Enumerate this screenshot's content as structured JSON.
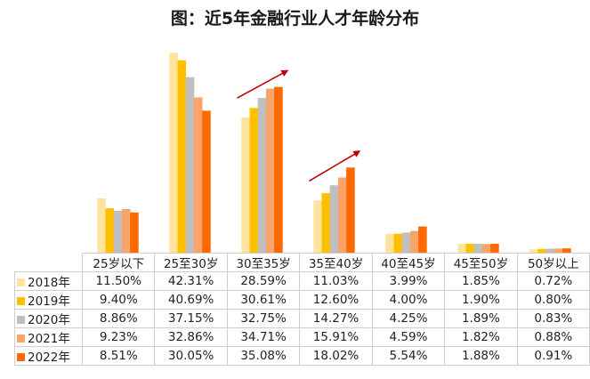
{
  "chart_data": {
    "type": "bar",
    "title": "图：近5年金融行业人才年龄分布",
    "categories": [
      "25岁以下",
      "25至30岁",
      "30至35岁",
      "35至40岁",
      "40至45岁",
      "45至50岁",
      "50岁以上"
    ],
    "series": [
      {
        "name": "2018年",
        "color": "#FDE39C",
        "values": [
          11.5,
          42.31,
          28.59,
          11.03,
          3.99,
          1.85,
          0.72
        ],
        "labels": [
          "11.50%",
          "42.31%",
          "28.59%",
          "11.03%",
          "3.99%",
          "1.85%",
          "0.72%"
        ]
      },
      {
        "name": "2019年",
        "color": "#FFC000",
        "values": [
          9.4,
          40.69,
          30.61,
          12.6,
          4.0,
          1.9,
          0.8
        ],
        "labels": [
          "9.40%",
          "40.69%",
          "30.61%",
          "12.60%",
          "4.00%",
          "1.90%",
          "0.80%"
        ]
      },
      {
        "name": "2020年",
        "color": "#BFBFBF",
        "values": [
          8.86,
          37.15,
          32.75,
          14.27,
          4.25,
          1.89,
          0.83
        ],
        "labels": [
          "8.86%",
          "37.15%",
          "32.75%",
          "14.27%",
          "4.25%",
          "1.89%",
          "0.83%"
        ]
      },
      {
        "name": "2021年",
        "color": "#F8A46A",
        "values": [
          9.23,
          32.86,
          34.71,
          15.91,
          4.59,
          1.82,
          0.88
        ],
        "labels": [
          "9.23%",
          "32.86%",
          "34.71%",
          "15.91%",
          "4.59%",
          "1.82%",
          "0.88%"
        ]
      },
      {
        "name": "2022年",
        "color": "#FF6A00",
        "values": [
          8.51,
          30.05,
          35.08,
          18.02,
          5.54,
          1.88,
          0.91
        ],
        "labels": [
          "8.51%",
          "30.05%",
          "35.08%",
          "18.02%",
          "5.54%",
          "1.88%",
          "0.91%"
        ]
      }
    ],
    "annotations": [
      {
        "type": "arrow",
        "category": "30至35岁",
        "color": "#C00000"
      },
      {
        "type": "arrow",
        "category": "35至40岁",
        "color": "#C00000"
      }
    ],
    "ylim": [
      0,
      45
    ],
    "grid": false,
    "legend": "data-table"
  }
}
